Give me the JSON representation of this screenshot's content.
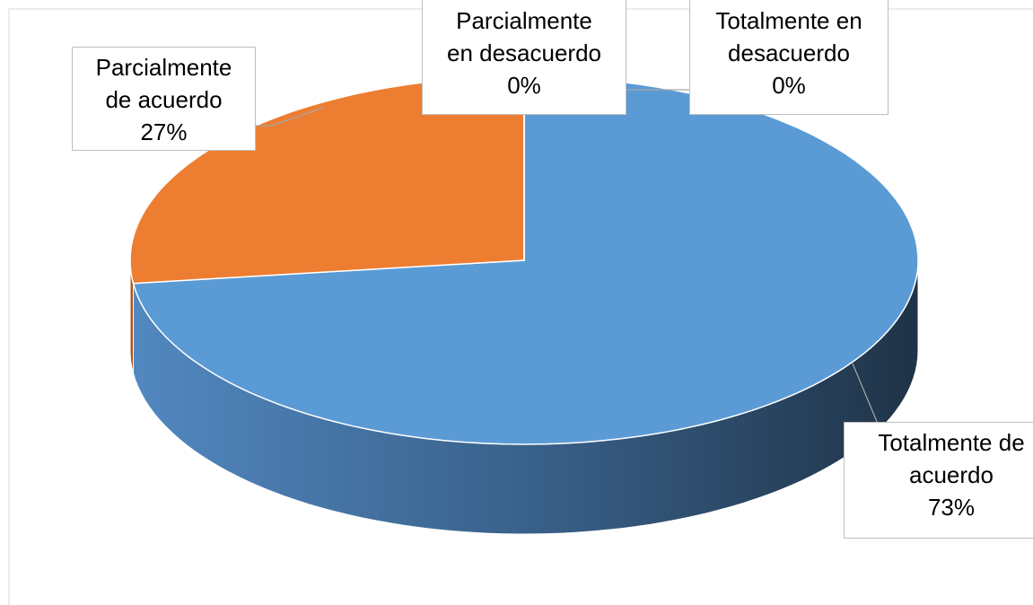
{
  "chart_data": {
    "type": "pie",
    "categories": [
      "Totalmente de acuerdo",
      "Parcialmente de acuerdo",
      "Parcialmente en desacuerdo",
      "Totalmente en desacuerdo"
    ],
    "values": [
      73,
      27,
      0,
      0
    ],
    "value_labels": [
      "73%",
      "27%",
      "0%",
      "0%"
    ],
    "colors": [
      "#5b9bd5",
      "#ed7d31",
      "#a5a5a5",
      "#ffc000"
    ]
  }
}
